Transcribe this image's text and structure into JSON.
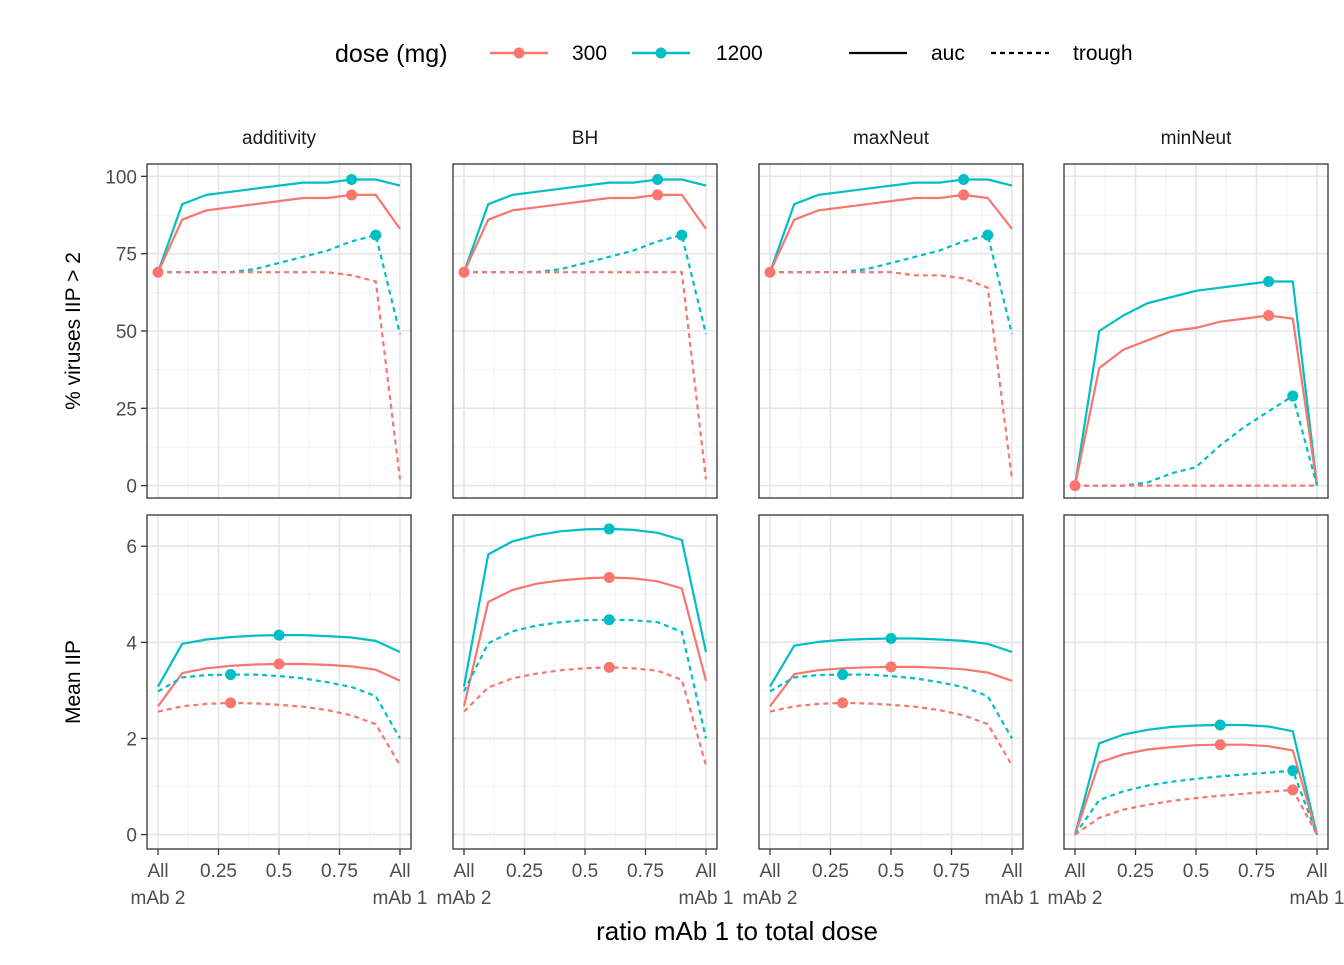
{
  "chart_data": {
    "type": "line",
    "layout": "facet-grid",
    "x_label": "ratio mAb 1 to total dose",
    "x_range": [
      0,
      1
    ],
    "x_ticks": [
      {
        "value": 0,
        "line1": "All",
        "line2": "mAb 2"
      },
      {
        "value": 0.25,
        "line1": "0.25",
        "line2": ""
      },
      {
        "value": 0.5,
        "line1": "0.5",
        "line2": ""
      },
      {
        "value": 0.75,
        "line1": "0.75",
        "line2": ""
      },
      {
        "value": 1,
        "line1": "All",
        "line2": "mAb 1"
      }
    ],
    "x": [
      0,
      0.1,
      0.2,
      0.3,
      0.4,
      0.5,
      0.6,
      0.7,
      0.8,
      0.9,
      1
    ],
    "columns": [
      "additivity",
      "BH",
      "maxNeut",
      "minNeut"
    ],
    "rows": [
      {
        "id": "pct",
        "y_label": "% viruses IIP > 2",
        "y_range": [
          -4,
          104
        ],
        "y_ticks": [
          0,
          25,
          50,
          75,
          100
        ]
      },
      {
        "id": "mean",
        "y_label": "Mean IIP",
        "y_range": [
          -0.3,
          6.65
        ],
        "y_ticks": [
          0,
          2,
          4,
          6
        ]
      }
    ],
    "legend": {
      "position": "top",
      "color_title": "dose (mg)",
      "colors": [
        {
          "key": "300",
          "label": "300",
          "color": "#F8766D"
        },
        {
          "key": "1200",
          "label": "1200",
          "color": "#00BFC4"
        }
      ],
      "linetypes": [
        {
          "key": "auc",
          "label": "auc",
          "dash": ""
        },
        {
          "key": "trough",
          "label": "trough",
          "dash": "5,4"
        }
      ]
    },
    "panels": [
      {
        "row": 0,
        "col": 0,
        "series": [
          {
            "dose": "1200",
            "metric": "auc",
            "values": [
              69,
              91,
              94,
              95,
              96,
              97,
              98,
              98,
              99,
              99,
              97
            ],
            "max_x": 0.8,
            "max_y": 99
          },
          {
            "dose": "300",
            "metric": "auc",
            "values": [
              69,
              86,
              89,
              90,
              91,
              92,
              93,
              93,
              94,
              94,
              83
            ],
            "max_x": 0.8,
            "max_y": 94
          },
          {
            "dose": "1200",
            "metric": "trough",
            "values": [
              69,
              69,
              69,
              69,
              70,
              72,
              74,
              76,
              79,
              81,
              49
            ],
            "max_x": 0.9,
            "max_y": 81
          },
          {
            "dose": "300",
            "metric": "trough",
            "values": [
              69,
              69,
              69,
              69,
              69,
              69,
              69,
              69,
              68,
              66,
              2
            ],
            "max_x": 0,
            "max_y": 69
          }
        ]
      },
      {
        "row": 0,
        "col": 1,
        "series": [
          {
            "dose": "1200",
            "metric": "auc",
            "values": [
              69,
              91,
              94,
              95,
              96,
              97,
              98,
              98,
              99,
              99,
              97
            ],
            "max_x": 0.8,
            "max_y": 99
          },
          {
            "dose": "300",
            "metric": "auc",
            "values": [
              69,
              86,
              89,
              90,
              91,
              92,
              93,
              93,
              94,
              94,
              83
            ],
            "max_x": 0.8,
            "max_y": 94
          },
          {
            "dose": "1200",
            "metric": "trough",
            "values": [
              69,
              69,
              69,
              69,
              70,
              72,
              74,
              76,
              79,
              81,
              49
            ],
            "max_x": 0.9,
            "max_y": 81
          },
          {
            "dose": "300",
            "metric": "trough",
            "values": [
              69,
              69,
              69,
              69,
              69,
              69,
              69,
              69,
              69,
              69,
              2
            ],
            "max_x": 0,
            "max_y": 69
          }
        ]
      },
      {
        "row": 0,
        "col": 2,
        "series": [
          {
            "dose": "1200",
            "metric": "auc",
            "values": [
              69,
              91,
              94,
              95,
              96,
              97,
              98,
              98,
              99,
              99,
              97
            ],
            "max_x": 0.8,
            "max_y": 99
          },
          {
            "dose": "300",
            "metric": "auc",
            "values": [
              69,
              86,
              89,
              90,
              91,
              92,
              93,
              93,
              94,
              93,
              83
            ],
            "max_x": 0.8,
            "max_y": 94
          },
          {
            "dose": "1200",
            "metric": "trough",
            "values": [
              69,
              69,
              69,
              69,
              70,
              72,
              74,
              76,
              79,
              81,
              49
            ],
            "max_x": 0.9,
            "max_y": 81
          },
          {
            "dose": "300",
            "metric": "trough",
            "values": [
              69,
              69,
              69,
              69,
              69,
              69,
              68,
              68,
              67,
              64,
              2
            ],
            "max_x": 0,
            "max_y": 69
          }
        ]
      },
      {
        "row": 0,
        "col": 3,
        "series": [
          {
            "dose": "1200",
            "metric": "auc",
            "values": [
              0,
              50,
              55,
              59,
              61,
              63,
              64,
              65,
              66,
              66,
              0
            ],
            "max_x": 0.8,
            "max_y": 66
          },
          {
            "dose": "300",
            "metric": "auc",
            "values": [
              0,
              38,
              44,
              47,
              50,
              51,
              53,
              54,
              55,
              54,
              0
            ],
            "max_x": 0.8,
            "max_y": 55
          },
          {
            "dose": "1200",
            "metric": "trough",
            "values": [
              0,
              0,
              0,
              1,
              4,
              6,
              13,
              19,
              24,
              29,
              0
            ],
            "max_x": 0.9,
            "max_y": 29
          },
          {
            "dose": "300",
            "metric": "trough",
            "values": [
              0,
              0,
              0,
              0,
              0,
              0,
              0,
              0,
              0,
              0,
              0
            ],
            "max_x": 0,
            "max_y": 0
          }
        ]
      },
      {
        "row": 1,
        "col": 0,
        "series": [
          {
            "dose": "1200",
            "metric": "auc",
            "values": [
              3.08,
              3.97,
              4.06,
              4.11,
              4.14,
              4.15,
              4.15,
              4.13,
              4.1,
              4.03,
              3.8
            ],
            "max_x": 0.5,
            "max_y": 4.15
          },
          {
            "dose": "300",
            "metric": "auc",
            "values": [
              2.67,
              3.36,
              3.46,
              3.51,
              3.54,
              3.55,
              3.55,
              3.53,
              3.5,
              3.43,
              3.2
            ],
            "max_x": 0.5,
            "max_y": 3.55
          },
          {
            "dose": "1200",
            "metric": "trough",
            "values": [
              2.98,
              3.27,
              3.32,
              3.33,
              3.33,
              3.3,
              3.25,
              3.17,
              3.07,
              2.88,
              2.0
            ],
            "max_x": 0.3,
            "max_y": 3.33
          },
          {
            "dose": "300",
            "metric": "trough",
            "values": [
              2.56,
              2.67,
              2.72,
              2.74,
              2.73,
              2.7,
              2.66,
              2.59,
              2.48,
              2.3,
              1.44
            ],
            "max_x": 0.3,
            "max_y": 2.74
          }
        ]
      },
      {
        "row": 1,
        "col": 1,
        "series": [
          {
            "dose": "1200",
            "metric": "auc",
            "values": [
              3.08,
              5.83,
              6.1,
              6.23,
              6.31,
              6.35,
              6.36,
              6.34,
              6.28,
              6.13,
              3.8
            ],
            "max_x": 0.6,
            "max_y": 6.36
          },
          {
            "dose": "300",
            "metric": "auc",
            "values": [
              2.67,
              4.84,
              5.09,
              5.22,
              5.29,
              5.33,
              5.35,
              5.33,
              5.27,
              5.12,
              3.2
            ],
            "max_x": 0.6,
            "max_y": 5.35
          },
          {
            "dose": "1200",
            "metric": "trough",
            "values": [
              2.98,
              3.98,
              4.23,
              4.35,
              4.42,
              4.46,
              4.47,
              4.46,
              4.42,
              4.22,
              2.0
            ],
            "max_x": 0.6,
            "max_y": 4.47
          },
          {
            "dose": "300",
            "metric": "trough",
            "values": [
              2.56,
              3.06,
              3.25,
              3.35,
              3.42,
              3.46,
              3.48,
              3.46,
              3.41,
              3.22,
              1.44
            ],
            "max_x": 0.6,
            "max_y": 3.48
          }
        ]
      },
      {
        "row": 1,
        "col": 2,
        "series": [
          {
            "dose": "1200",
            "metric": "auc",
            "values": [
              3.08,
              3.93,
              4.01,
              4.05,
              4.07,
              4.08,
              4.08,
              4.06,
              4.03,
              3.97,
              3.8
            ],
            "max_x": 0.5,
            "max_y": 4.08
          },
          {
            "dose": "300",
            "metric": "auc",
            "values": [
              2.67,
              3.34,
              3.42,
              3.46,
              3.48,
              3.49,
              3.49,
              3.47,
              3.44,
              3.37,
              3.2
            ],
            "max_x": 0.5,
            "max_y": 3.49
          },
          {
            "dose": "1200",
            "metric": "trough",
            "values": [
              2.98,
              3.27,
              3.32,
              3.33,
              3.33,
              3.3,
              3.25,
              3.17,
              3.07,
              2.88,
              2.0
            ],
            "max_x": 0.3,
            "max_y": 3.33
          },
          {
            "dose": "300",
            "metric": "trough",
            "values": [
              2.56,
              2.67,
              2.72,
              2.74,
              2.73,
              2.7,
              2.66,
              2.59,
              2.48,
              2.3,
              1.44
            ],
            "max_x": 0.3,
            "max_y": 2.74
          }
        ]
      },
      {
        "row": 1,
        "col": 3,
        "series": [
          {
            "dose": "1200",
            "metric": "auc",
            "values": [
              0,
              1.9,
              2.08,
              2.18,
              2.24,
              2.27,
              2.28,
              2.28,
              2.25,
              2.15,
              0
            ],
            "max_x": 0.6,
            "max_y": 2.28
          },
          {
            "dose": "300",
            "metric": "auc",
            "values": [
              0,
              1.5,
              1.67,
              1.77,
              1.82,
              1.86,
              1.87,
              1.87,
              1.84,
              1.75,
              0
            ],
            "max_x": 0.6,
            "max_y": 1.87
          },
          {
            "dose": "1200",
            "metric": "trough",
            "values": [
              0,
              0.72,
              0.9,
              1.02,
              1.1,
              1.16,
              1.21,
              1.25,
              1.29,
              1.33,
              0
            ],
            "max_x": 0.9,
            "max_y": 1.33
          },
          {
            "dose": "300",
            "metric": "trough",
            "values": [
              0,
              0.35,
              0.52,
              0.62,
              0.7,
              0.76,
              0.81,
              0.85,
              0.89,
              0.93,
              0
            ],
            "max_x": 0.9,
            "max_y": 0.93
          }
        ]
      }
    ]
  }
}
